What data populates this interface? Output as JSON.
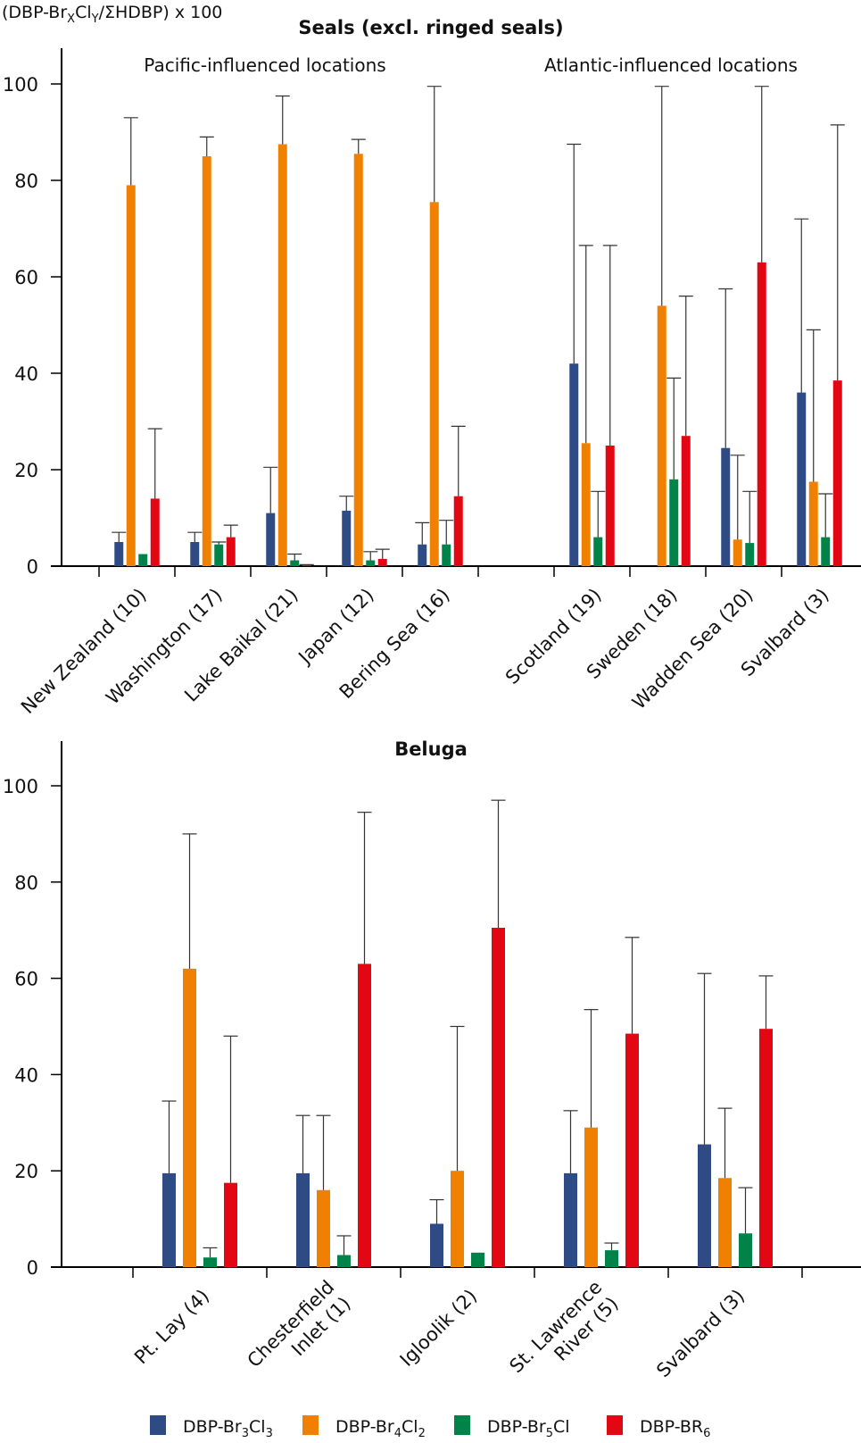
{
  "chart_data": [
    {
      "type": "bar",
      "title": "Seals (excl. ringed seals)",
      "ylabel": "(DBP-BrXClY/ΣHDBP) x 100",
      "xlabel": "",
      "ylim": [
        0,
        100
      ],
      "yticks": [
        0,
        20,
        40,
        60,
        80,
        100
      ],
      "grid": false,
      "group_labels": [
        {
          "text": "Pacific-influenced locations",
          "spans": [
            0,
            4
          ]
        },
        {
          "text": "Atlantic-influenced locations",
          "spans": [
            6,
            9
          ]
        }
      ],
      "categories": [
        "New Zealand (10)",
        "Washington (17)",
        "Lake Baikal (21)",
        "Japan (12)",
        "Bering Sea (16)",
        "",
        "Scotland (19)",
        "Sweden (18)",
        "Wadden Sea (20)",
        "Svalbard (3)"
      ],
      "series": [
        {
          "name": "DBP-Br3Cl3",
          "color": "#2e4b85",
          "values": [
            5,
            5,
            11,
            11.5,
            4.5,
            null,
            42,
            0,
            24.5,
            36
          ],
          "error_upper": [
            7,
            7,
            20.5,
            14.5,
            9,
            null,
            87.5,
            null,
            57.5,
            72
          ]
        },
        {
          "name": "DBP-Br4Cl2",
          "color": "#f08000",
          "values": [
            79,
            85,
            87.5,
            85.5,
            75.5,
            null,
            25.5,
            54,
            5.5,
            17.5
          ],
          "error_upper": [
            93,
            89,
            97.5,
            88.5,
            99.5,
            null,
            66.5,
            99.5,
            23,
            49
          ]
        },
        {
          "name": "DBP-Br5Cl",
          "color": "#008348",
          "values": [
            2.5,
            4.5,
            1.2,
            1.2,
            4.5,
            null,
            6,
            18,
            4.8,
            6
          ],
          "error_upper": [
            2.5,
            5,
            2.5,
            3,
            9.5,
            null,
            15.5,
            39,
            15.5,
            15
          ]
        },
        {
          "name": "DBP-BR6",
          "color": "#e30613",
          "values": [
            14,
            6,
            0.3,
            1.5,
            14.5,
            null,
            25,
            27,
            63,
            38.5
          ],
          "error_upper": [
            28.5,
            8.5,
            0.3,
            3.5,
            29,
            null,
            66.5,
            56,
            99.5,
            91.5
          ]
        }
      ]
    },
    {
      "type": "bar",
      "title": "Beluga",
      "xlabel": "",
      "ylim": [
        0,
        100
      ],
      "yticks": [
        0,
        20,
        40,
        60,
        80,
        100
      ],
      "grid": false,
      "categories": [
        "Pt. Lay (4)",
        "Chesterfield Inlet (1)",
        "Igloolik (2)",
        "St. Lawrence River (5)",
        "Svalbard (3)"
      ],
      "category_lines": [
        [
          "Pt. Lay (4)"
        ],
        [
          "Chesterfield",
          "Inlet (1)"
        ],
        [
          "Igloolik (2)"
        ],
        [
          "St. Lawrence",
          "River (5)"
        ],
        [
          "Svalbard (3)"
        ]
      ],
      "series": [
        {
          "name": "DBP-Br3Cl3",
          "color": "#2e4b85",
          "values": [
            19.5,
            19.5,
            9,
            19.5,
            25.5
          ],
          "error_upper": [
            34.5,
            31.5,
            14,
            32.5,
            61
          ]
        },
        {
          "name": "DBP-Br4Cl2",
          "color": "#f08000",
          "values": [
            62,
            16,
            20,
            29,
            18.5
          ],
          "error_upper": [
            90,
            31.5,
            50,
            53.5,
            33
          ]
        },
        {
          "name": "DBP-Br5Cl",
          "color": "#008348",
          "values": [
            2,
            2.5,
            3,
            3.5,
            7
          ],
          "error_upper": [
            4,
            6.5,
            3,
            5,
            16.5
          ]
        },
        {
          "name": "DBP-BR6",
          "color": "#e30613",
          "values": [
            17.5,
            63,
            70.5,
            48.5,
            49.5
          ],
          "error_upper": [
            48,
            94.5,
            97,
            68.5,
            60.5
          ]
        }
      ]
    }
  ],
  "legend": {
    "placement": "bottom",
    "items": [
      {
        "base": "DBP-Br",
        "sub1": "3",
        "mid": "Cl",
        "sub2": "3",
        "color": "#2e4b85"
      },
      {
        "base": "DBP-Br",
        "sub1": "4",
        "mid": "Cl",
        "sub2": "2",
        "color": "#f08000"
      },
      {
        "base": "DBP-Br",
        "sub1": "5",
        "mid": "Cl",
        "sub2": "",
        "color": "#008348"
      },
      {
        "base": "DBP-BR",
        "sub1": "6",
        "mid": "",
        "sub2": "",
        "color": "#e30613"
      }
    ]
  },
  "ylabel_parts": {
    "a": "(DBP-Br",
    "s1": "X",
    "b": "Cl",
    "s2": "Y",
    "c": "/ΣHDBP) x 100"
  }
}
